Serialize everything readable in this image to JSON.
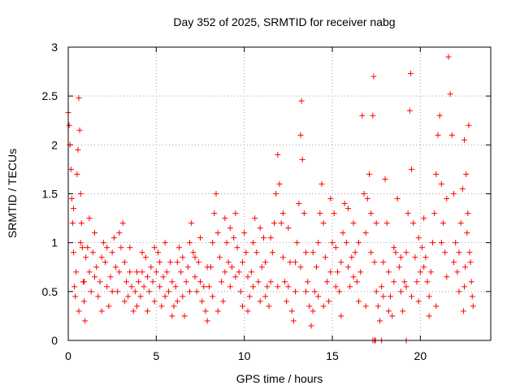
{
  "chart_data": {
    "type": "scatter",
    "title": "Day 352 of 2025, SRMTID for receiver nabg",
    "xlabel": "GPS time / hours",
    "ylabel": "SRMTID / TECUs",
    "xlim": [
      0,
      24
    ],
    "ylim": [
      0,
      3
    ],
    "xticks": [
      0,
      5,
      10,
      15,
      20
    ],
    "yticks": [
      0,
      0.5,
      1,
      1.5,
      2,
      2.5,
      3
    ],
    "xtick_labels": [
      "0",
      "5",
      "10",
      "15",
      "20"
    ],
    "ytick_labels": [
      "0",
      "0.5",
      "1",
      "1.5",
      "2",
      "2.5",
      "3"
    ],
    "grid": true,
    "marker": "+",
    "color": "#ff0000",
    "series": [
      {
        "name": "SRMTID",
        "points": [
          [
            0.0,
            2.33
          ],
          [
            0.05,
            2.2
          ],
          [
            0.1,
            2.0
          ],
          [
            0.15,
            1.75
          ],
          [
            0.2,
            1.45
          ],
          [
            0.25,
            1.2
          ],
          [
            0.3,
            0.9
          ],
          [
            0.35,
            0.55
          ],
          [
            0.4,
            0.45
          ],
          [
            0.45,
            0.7
          ],
          [
            0.5,
            1.7
          ],
          [
            0.55,
            1.95
          ],
          [
            0.6,
            2.48
          ],
          [
            0.65,
            2.15
          ],
          [
            0.7,
            1.5
          ],
          [
            0.75,
            1.2
          ],
          [
            0.8,
            0.95
          ],
          [
            0.85,
            0.6
          ],
          [
            0.9,
            0.4
          ],
          [
            0.95,
            0.2
          ],
          [
            1.0,
            0.85
          ],
          [
            1.1,
            0.95
          ],
          [
            1.2,
            0.7
          ],
          [
            1.3,
            0.5
          ],
          [
            1.4,
            0.9
          ],
          [
            1.5,
            1.1
          ],
          [
            1.6,
            0.75
          ],
          [
            1.7,
            0.45
          ],
          [
            1.8,
            0.6
          ],
          [
            1.9,
            0.85
          ],
          [
            2.0,
            1.0
          ],
          [
            2.1,
            0.8
          ],
          [
            2.2,
            0.55
          ],
          [
            2.3,
            0.35
          ],
          [
            2.4,
            0.65
          ],
          [
            2.5,
            0.9
          ],
          [
            2.6,
            1.05
          ],
          [
            2.7,
            0.75
          ],
          [
            2.8,
            0.5
          ],
          [
            2.9,
            0.7
          ],
          [
            3.0,
            0.95
          ],
          [
            3.1,
            1.2
          ],
          [
            3.2,
            0.8
          ],
          [
            3.3,
            0.6
          ],
          [
            3.4,
            0.45
          ],
          [
            3.5,
            0.7
          ],
          [
            3.6,
            0.55
          ],
          [
            3.7,
            0.3
          ],
          [
            3.8,
            0.5
          ],
          [
            3.9,
            0.7
          ],
          [
            4.0,
            0.6
          ],
          [
            4.1,
            0.45
          ],
          [
            4.2,
            0.7
          ],
          [
            4.3,
            0.55
          ],
          [
            4.4,
            0.85
          ],
          [
            4.5,
            0.65
          ],
          [
            4.6,
            0.5
          ],
          [
            4.7,
            0.75
          ],
          [
            4.8,
            0.6
          ],
          [
            4.9,
            0.4
          ],
          [
            5.0,
            0.7
          ],
          [
            5.1,
            0.9
          ],
          [
            5.2,
            0.55
          ],
          [
            5.3,
            0.35
          ],
          [
            5.4,
            0.65
          ],
          [
            5.5,
            1.0
          ],
          [
            5.6,
            0.7
          ],
          [
            5.7,
            0.5
          ],
          [
            5.8,
            0.8
          ],
          [
            5.9,
            0.6
          ],
          [
            6.0,
            0.35
          ],
          [
            6.1,
            0.55
          ],
          [
            6.2,
            0.8
          ],
          [
            6.3,
            0.95
          ],
          [
            6.4,
            0.7
          ],
          [
            6.5,
            0.45
          ],
          [
            6.6,
            0.25
          ],
          [
            6.7,
            0.6
          ],
          [
            6.8,
            0.75
          ],
          [
            6.9,
            1.0
          ],
          [
            7.0,
            1.2
          ],
          [
            7.1,
            0.9
          ],
          [
            7.2,
            0.65
          ],
          [
            7.3,
            0.5
          ],
          [
            7.4,
            0.8
          ],
          [
            7.5,
            0.6
          ],
          [
            7.6,
            0.4
          ],
          [
            7.7,
            0.55
          ],
          [
            7.8,
            0.3
          ],
          [
            7.9,
            0.2
          ],
          [
            8.0,
            0.55
          ],
          [
            8.1,
            0.75
          ],
          [
            8.2,
            1.0
          ],
          [
            8.3,
            1.3
          ],
          [
            8.4,
            1.5
          ],
          [
            8.5,
            1.1
          ],
          [
            8.6,
            0.85
          ],
          [
            8.7,
            0.6
          ],
          [
            8.8,
            0.4
          ],
          [
            8.9,
            0.7
          ],
          [
            9.0,
            1.0
          ],
          [
            9.1,
            0.8
          ],
          [
            9.2,
            0.55
          ],
          [
            9.3,
            0.75
          ],
          [
            9.4,
            1.05
          ],
          [
            9.5,
            1.3
          ],
          [
            9.6,
            0.95
          ],
          [
            9.7,
            0.7
          ],
          [
            9.8,
            0.5
          ],
          [
            9.9,
            0.8
          ],
          [
            10.0,
            1.1
          ],
          [
            10.1,
            0.9
          ],
          [
            10.2,
            0.65
          ],
          [
            10.3,
            0.45
          ],
          [
            10.4,
            0.7
          ],
          [
            10.5,
            1.0
          ],
          [
            10.6,
            1.25
          ],
          [
            10.7,
            0.9
          ],
          [
            10.8,
            0.6
          ],
          [
            10.9,
            0.4
          ],
          [
            11.0,
            0.75
          ],
          [
            11.1,
            1.05
          ],
          [
            11.2,
            0.8
          ],
          [
            11.3,
            0.55
          ],
          [
            11.4,
            0.35
          ],
          [
            11.5,
            0.6
          ],
          [
            11.6,
            0.9
          ],
          [
            11.7,
            1.2
          ],
          [
            11.8,
            1.5
          ],
          [
            11.9,
            1.9
          ],
          [
            12.0,
            1.6
          ],
          [
            12.1,
            1.2
          ],
          [
            12.2,
            0.85
          ],
          [
            12.3,
            0.6
          ],
          [
            12.4,
            0.4
          ],
          [
            12.5,
            0.55
          ],
          [
            12.6,
            0.8
          ],
          [
            12.7,
            0.3
          ],
          [
            12.8,
            0.2
          ],
          [
            12.9,
            0.5
          ],
          [
            13.0,
            1.0
          ],
          [
            13.1,
            1.4
          ],
          [
            13.2,
            2.1
          ],
          [
            13.25,
            2.45
          ],
          [
            13.3,
            1.85
          ],
          [
            13.4,
            1.3
          ],
          [
            13.5,
            0.9
          ],
          [
            13.6,
            0.6
          ],
          [
            13.7,
            0.35
          ],
          [
            13.8,
            0.15
          ],
          [
            13.9,
            0.3
          ],
          [
            14.0,
            0.5
          ],
          [
            14.1,
            0.75
          ],
          [
            14.2,
            1.0
          ],
          [
            14.3,
            1.3
          ],
          [
            14.4,
            1.6
          ],
          [
            14.5,
            1.2
          ],
          [
            14.6,
            0.85
          ],
          [
            14.7,
            0.6
          ],
          [
            14.8,
            0.4
          ],
          [
            14.9,
            0.7
          ],
          [
            15.0,
            1.0
          ],
          [
            15.1,
            1.3
          ],
          [
            15.2,
            0.95
          ],
          [
            15.3,
            0.7
          ],
          [
            15.4,
            0.5
          ],
          [
            15.5,
            0.8
          ],
          [
            15.6,
            1.1
          ],
          [
            15.7,
            1.4
          ],
          [
            15.8,
            1.0
          ],
          [
            15.9,
            0.75
          ],
          [
            16.0,
            0.55
          ],
          [
            16.1,
            0.85
          ],
          [
            16.2,
            1.2
          ],
          [
            16.3,
            0.9
          ],
          [
            16.4,
            0.6
          ],
          [
            16.5,
            0.4
          ],
          [
            16.6,
            0.7
          ],
          [
            16.7,
            2.3
          ],
          [
            16.8,
            1.5
          ],
          [
            16.9,
            1.1
          ],
          [
            17.0,
            1.45
          ],
          [
            17.1,
            1.7
          ],
          [
            17.2,
            1.3
          ],
          [
            17.3,
            2.3
          ],
          [
            17.35,
            2.7
          ],
          [
            17.4,
            0.8
          ],
          [
            17.5,
            0.5
          ],
          [
            17.6,
            0.35
          ],
          [
            17.7,
            0.2
          ],
          [
            17.8,
            0.55
          ],
          [
            17.9,
            0.8
          ],
          [
            18.0,
            1.65
          ],
          [
            18.1,
            1.2
          ],
          [
            18.2,
            0.7
          ],
          [
            18.3,
            0.45
          ],
          [
            18.4,
            0.25
          ],
          [
            18.5,
            0.6
          ],
          [
            18.6,
            0.9
          ],
          [
            18.7,
            1.45
          ],
          [
            18.8,
            0.75
          ],
          [
            18.9,
            0.5
          ],
          [
            19.0,
            0.3
          ],
          [
            19.1,
            0.6
          ],
          [
            19.2,
            0.9
          ],
          [
            19.3,
            1.3
          ],
          [
            19.4,
            2.35
          ],
          [
            19.45,
            2.73
          ],
          [
            19.5,
            1.75
          ],
          [
            19.6,
            1.2
          ],
          [
            19.7,
            0.85
          ],
          [
            19.8,
            0.6
          ],
          [
            19.9,
            0.4
          ],
          [
            20.0,
            0.7
          ],
          [
            20.1,
            0.95
          ],
          [
            20.2,
            1.25
          ],
          [
            20.3,
            0.85
          ],
          [
            20.4,
            0.6
          ],
          [
            20.5,
            0.45
          ],
          [
            20.6,
            0.7
          ],
          [
            20.7,
            1.0
          ],
          [
            20.8,
            1.3
          ],
          [
            20.9,
            1.7
          ],
          [
            21.0,
            2.1
          ],
          [
            21.1,
            2.3
          ],
          [
            21.2,
            1.6
          ],
          [
            21.3,
            1.2
          ],
          [
            21.4,
            0.9
          ],
          [
            21.5,
            0.65
          ],
          [
            21.6,
            2.9
          ],
          [
            21.7,
            2.52
          ],
          [
            21.8,
            2.1
          ],
          [
            21.9,
            1.5
          ],
          [
            22.0,
            1.0
          ],
          [
            22.1,
            0.7
          ],
          [
            22.2,
            0.5
          ],
          [
            22.3,
            1.2
          ],
          [
            22.4,
            1.55
          ],
          [
            22.5,
            2.05
          ],
          [
            22.6,
            1.7
          ],
          [
            22.7,
            1.3
          ],
          [
            22.8,
            0.9
          ],
          [
            22.9,
            0.6
          ],
          [
            23.0,
            0.35
          ],
          [
            22.75,
            2.2
          ],
          [
            22.85,
            0.8
          ],
          [
            22.95,
            0.45
          ],
          [
            22.65,
            1.1
          ],
          [
            22.55,
            0.75
          ],
          [
            22.45,
            0.3
          ],
          [
            0.3,
            1.35
          ],
          [
            0.7,
            1.0
          ],
          [
            1.5,
            0.65
          ],
          [
            2.5,
            0.5
          ],
          [
            3.5,
            0.95
          ],
          [
            4.5,
            0.3
          ],
          [
            5.5,
            0.45
          ],
          [
            6.5,
            0.85
          ],
          [
            7.5,
            1.05
          ],
          [
            8.5,
            0.3
          ],
          [
            9.5,
            0.65
          ],
          [
            10.5,
            0.55
          ],
          [
            11.5,
            1.05
          ],
          [
            12.5,
            1.15
          ],
          [
            13.5,
            0.5
          ],
          [
            14.5,
            0.35
          ],
          [
            15.5,
            0.25
          ],
          [
            16.5,
            1.0
          ],
          [
            17.5,
            1.2
          ],
          [
            18.5,
            0.95
          ],
          [
            19.5,
            0.45
          ],
          [
            20.5,
            0.25
          ],
          [
            21.5,
            1.45
          ],
          [
            22.5,
            0.55
          ],
          [
            0.9,
            0.6
          ],
          [
            1.9,
            0.3
          ],
          [
            2.9,
            1.1
          ],
          [
            3.9,
            0.35
          ],
          [
            4.9,
            0.95
          ],
          [
            5.9,
            0.25
          ],
          [
            6.9,
            0.5
          ],
          [
            7.9,
            0.75
          ],
          [
            8.9,
            1.25
          ],
          [
            9.9,
            0.35
          ],
          [
            10.9,
            1.15
          ],
          [
            11.9,
            0.55
          ],
          [
            12.9,
            0.8
          ],
          [
            13.9,
            0.9
          ],
          [
            14.9,
            1.45
          ],
          [
            15.9,
            1.35
          ],
          [
            16.9,
            0.35
          ],
          [
            17.9,
            0.45
          ],
          [
            18.9,
            0.85
          ],
          [
            19.9,
            1.05
          ],
          [
            20.9,
            0.35
          ],
          [
            21.9,
            0.8
          ],
          [
            0.6,
            0.3
          ],
          [
            1.2,
            1.25
          ],
          [
            2.2,
            0.95
          ],
          [
            3.2,
            0.4
          ],
          [
            4.2,
            0.9
          ],
          [
            5.2,
            0.8
          ],
          [
            6.2,
            0.4
          ],
          [
            7.2,
            0.85
          ],
          [
            8.2,
            0.45
          ],
          [
            9.2,
            1.15
          ],
          [
            10.2,
            0.3
          ],
          [
            11.2,
            0.45
          ],
          [
            12.2,
            1.3
          ],
          [
            13.2,
            0.75
          ],
          [
            14.2,
            0.45
          ],
          [
            15.2,
            0.55
          ],
          [
            16.2,
            0.65
          ],
          [
            17.2,
            0.9
          ],
          [
            18.2,
            0.3
          ],
          [
            19.2,
            0.55
          ],
          [
            20.2,
            0.75
          ],
          [
            21.2,
            1.0
          ],
          [
            22.2,
            0.9
          ],
          [
            17.3,
            0.0
          ],
          [
            17.4,
            0.0
          ],
          [
            17.45,
            0.0
          ],
          [
            17.8,
            0.0
          ],
          [
            19.2,
            0.0
          ]
        ]
      }
    ]
  }
}
